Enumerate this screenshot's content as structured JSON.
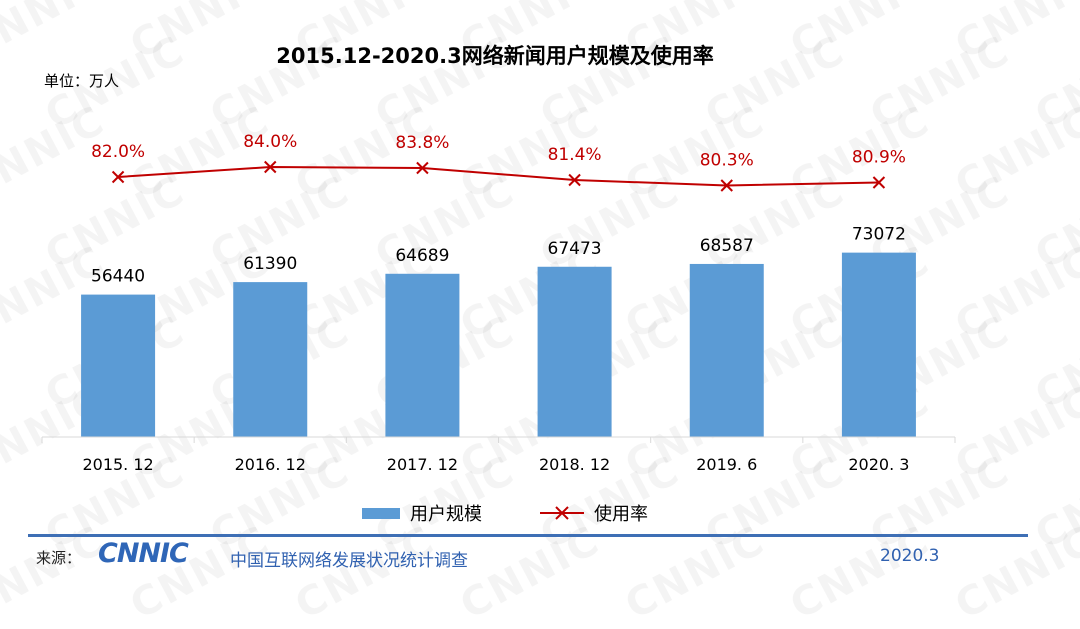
{
  "chart_data": {
    "type": "bar",
    "title": "2015.12-2020.3网络新闻用户规模及使用率",
    "unit_label": "单位：万人",
    "categories": [
      "2015. 12",
      "2016. 12",
      "2017. 12",
      "2018. 12",
      "2019. 6",
      "2020. 3"
    ],
    "series": [
      {
        "name": "用户规模",
        "kind": "bar",
        "values": [
          56440,
          61390,
          64689,
          67473,
          68587,
          73072
        ],
        "labels": [
          "56440",
          "61390",
          "64689",
          "67473",
          "68587",
          "73072"
        ],
        "color": "#5b9bd5"
      },
      {
        "name": "使用率",
        "kind": "line",
        "values": [
          82.0,
          84.0,
          83.8,
          81.4,
          80.3,
          80.9
        ],
        "labels": [
          "82.0%",
          "84.0%",
          "83.8%",
          "81.4%",
          "80.3%",
          "80.9%"
        ],
        "color": "#c00000"
      }
    ],
    "ylim": [
      0,
      100000
    ],
    "ylim_rate": [
      0,
      100
    ],
    "legend": "bottom-center",
    "grid": false
  },
  "footer": {
    "source_label": "来源：",
    "logo_text": "CNNIC",
    "org_name": "中国互联网络发展状况统计调查",
    "date": "2020.3"
  },
  "watermark_text": "CNNIC"
}
